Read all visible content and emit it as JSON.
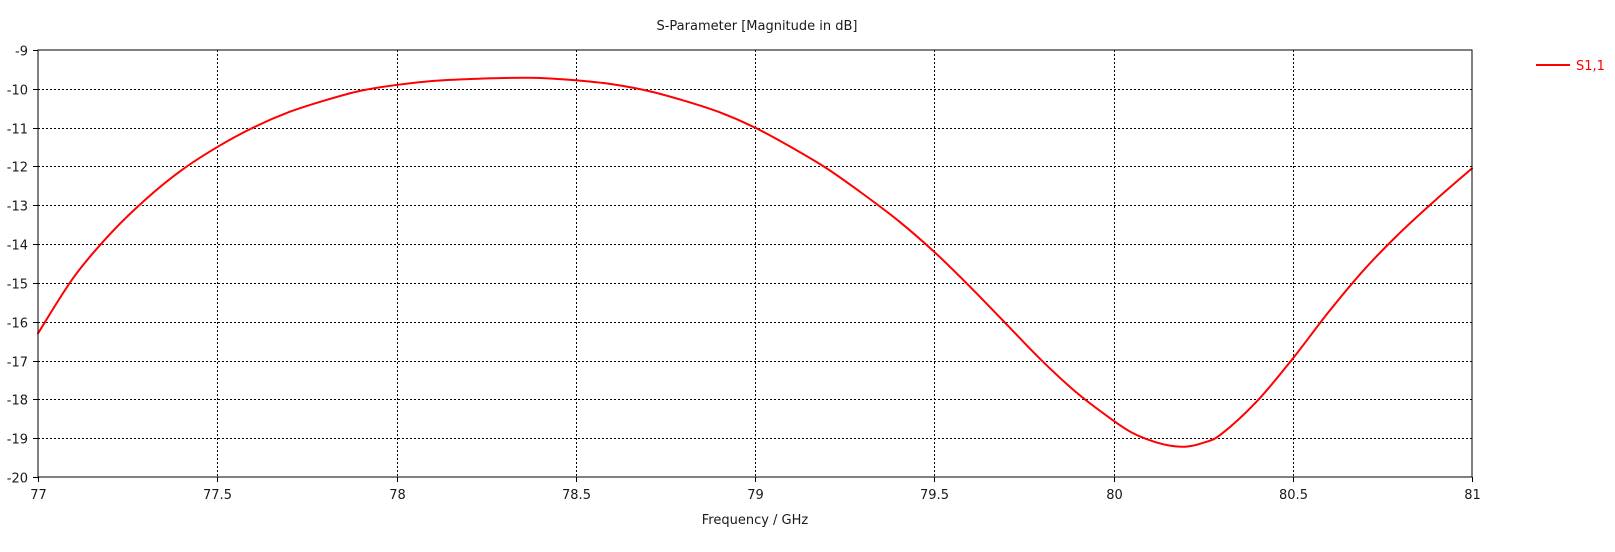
{
  "chart_data": {
    "type": "line",
    "title": "S-Parameter [Magnitude in dB]",
    "xlabel": "Frequency / GHz",
    "ylabel": "",
    "xlim": [
      77,
      81
    ],
    "ylim": [
      -20,
      -9
    ],
    "x_ticks": [
      77,
      77.5,
      78,
      78.5,
      79,
      79.5,
      80,
      80.5,
      81
    ],
    "x_tick_labels": [
      "77",
      "77.5",
      "78",
      "78.5",
      "79",
      "79.5",
      "80",
      "80.5",
      "81"
    ],
    "y_ticks": [
      -9,
      -10,
      -11,
      -12,
      -13,
      -14,
      -15,
      -16,
      -17,
      -18,
      -19,
      -20
    ],
    "y_tick_labels": [
      "-9",
      "-10",
      "-11",
      "-12",
      "-13",
      "-14",
      "-15",
      "-16",
      "-17",
      "-18",
      "-19",
      "-20"
    ],
    "grid": true,
    "legend_position": "top-right",
    "series": [
      {
        "name": "S1,1",
        "color": "#ff0000",
        "x": [
          77.0,
          77.1,
          77.2,
          77.3,
          77.4,
          77.5,
          77.6,
          77.7,
          77.8,
          77.9,
          78.0,
          78.1,
          78.2,
          78.3,
          78.4,
          78.5,
          78.6,
          78.7,
          78.8,
          78.9,
          79.0,
          79.1,
          79.2,
          79.3,
          79.4,
          79.5,
          79.6,
          79.7,
          79.8,
          79.9,
          80.0,
          80.05,
          80.1,
          80.15,
          80.2,
          80.25,
          80.3,
          80.4,
          80.5,
          80.6,
          80.7,
          80.8,
          80.9,
          81.0
        ],
        "y": [
          -16.3,
          -14.85,
          -13.75,
          -12.85,
          -12.1,
          -11.5,
          -11.0,
          -10.6,
          -10.3,
          -10.05,
          -9.9,
          -9.8,
          -9.75,
          -9.72,
          -9.72,
          -9.78,
          -9.88,
          -10.05,
          -10.3,
          -10.6,
          -11.0,
          -11.5,
          -12.05,
          -12.7,
          -13.4,
          -14.2,
          -15.1,
          -16.05,
          -17.0,
          -17.85,
          -18.55,
          -18.85,
          -19.05,
          -19.18,
          -19.22,
          -19.12,
          -18.9,
          -18.05,
          -16.95,
          -15.75,
          -14.65,
          -13.7,
          -12.85,
          -12.05
        ]
      }
    ]
  }
}
